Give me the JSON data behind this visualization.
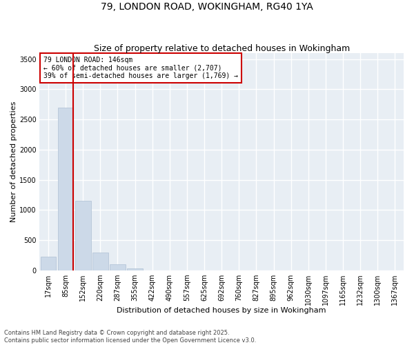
{
  "title_line1": "79, LONDON ROAD, WOKINGHAM, RG40 1YA",
  "title_line2": "Size of property relative to detached houses in Wokingham",
  "xlabel": "Distribution of detached houses by size in Wokingham",
  "ylabel": "Number of detached properties",
  "bar_color": "#ccd9e8",
  "bar_edge_color": "#aec0d4",
  "vline_color": "#cc0000",
  "annotation_text": "79 LONDON ROAD: 146sqm\n← 60% of detached houses are smaller (2,707)\n39% of semi-detached houses are larger (1,769) →",
  "annotation_box_color": "#cc0000",
  "categories": [
    "17sqm",
    "85sqm",
    "152sqm",
    "220sqm",
    "287sqm",
    "355sqm",
    "422sqm",
    "490sqm",
    "557sqm",
    "625sqm",
    "692sqm",
    "760sqm",
    "827sqm",
    "895sqm",
    "962sqm",
    "1030sqm",
    "1097sqm",
    "1165sqm",
    "1232sqm",
    "1300sqm",
    "1367sqm"
  ],
  "values": [
    230,
    2700,
    1150,
    295,
    105,
    38,
    0,
    0,
    0,
    0,
    0,
    0,
    0,
    0,
    0,
    0,
    0,
    0,
    0,
    0,
    0
  ],
  "ylim": [
    0,
    3600
  ],
  "yticks": [
    0,
    500,
    1000,
    1500,
    2000,
    2500,
    3000,
    3500
  ],
  "background_color": "#e8eef4",
  "grid_color": "#ffffff",
  "footer_text": "Contains HM Land Registry data © Crown copyright and database right 2025.\nContains public sector information licensed under the Open Government Licence v3.0.",
  "title_fontsize": 10,
  "subtitle_fontsize": 9,
  "axis_label_fontsize": 8,
  "tick_fontsize": 7,
  "annotation_fontsize": 7,
  "footer_fontsize": 6
}
